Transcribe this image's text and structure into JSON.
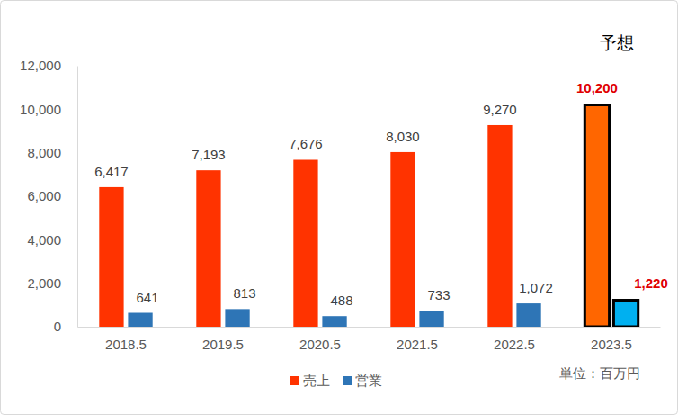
{
  "chart_data": {
    "type": "bar",
    "categories": [
      "2018.5",
      "2019.5",
      "2020.5",
      "2021.5",
      "2022.5",
      "2023.5"
    ],
    "series": [
      {
        "name": "売上",
        "color": "#ff3300",
        "colors": [
          "#ff3300",
          "#ff3300",
          "#ff3300",
          "#ff3300",
          "#ff3300",
          "#ff6600"
        ],
        "values": [
          6417,
          7193,
          7676,
          8030,
          9270,
          10200
        ],
        "value_labels": [
          "6,417",
          "7,193",
          "7,676",
          "8,030",
          "9,270",
          "10,200"
        ]
      },
      {
        "name": "営業",
        "color": "#2e75b6",
        "colors": [
          "#2e75b6",
          "#2e75b6",
          "#2e75b6",
          "#2e75b6",
          "#2e75b6",
          "#00b0f0"
        ],
        "values": [
          641,
          813,
          488,
          733,
          1072,
          1220
        ],
        "value_labels": [
          "641",
          "813",
          "488",
          "733",
          "1,072",
          "1,220"
        ]
      }
    ],
    "ylim": [
      0,
      12000
    ],
    "yticks": [
      0,
      {
        "value": 2000,
        "label": "2,000"
      },
      {
        "value": 4000,
        "label": "4,000"
      },
      {
        "value": 6000,
        "label": "6,000"
      },
      {
        "value": 8000,
        "label": "8,000"
      },
      {
        "value": 10000,
        "label": "10,000"
      },
      {
        "value": 12000,
        "label": "12,000"
      }
    ],
    "grid": false,
    "legend": "bottom",
    "data_labels": true,
    "annotations": [
      "予想",
      "単位：百万円"
    ]
  }
}
